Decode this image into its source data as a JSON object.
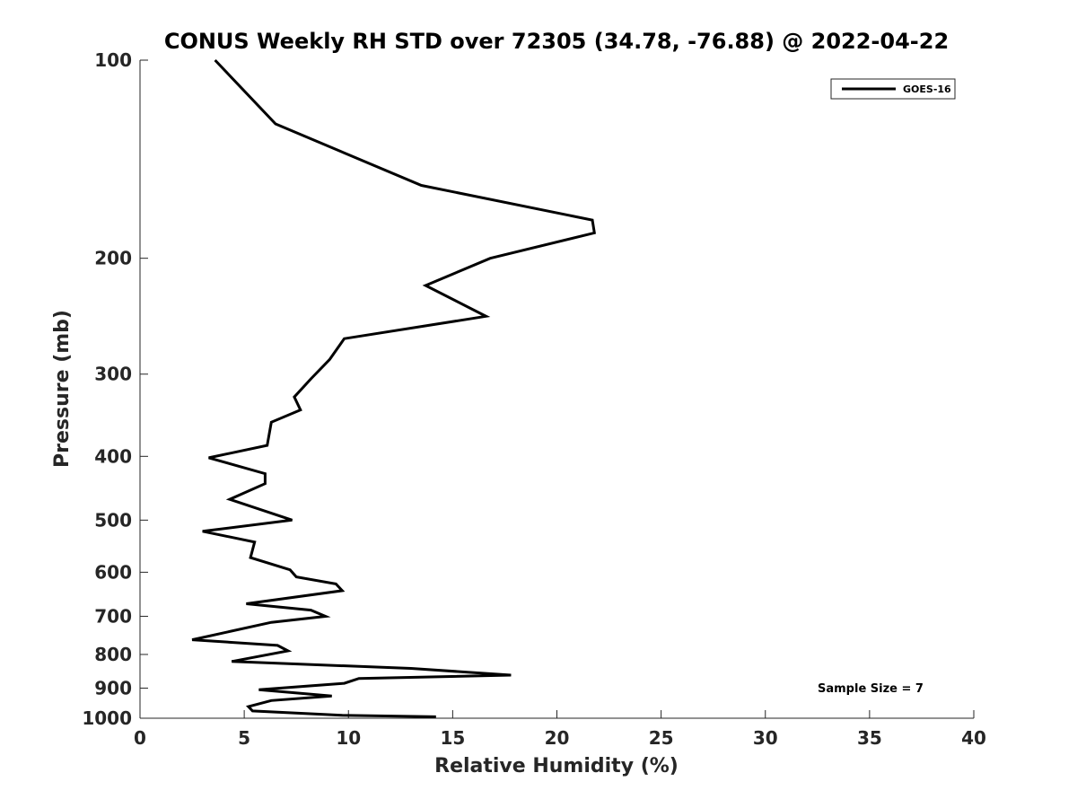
{
  "chart_data": {
    "type": "line",
    "title": "CONUS Weekly RH STD over 72305 (34.78, -76.88) @ 2022-04-22",
    "xlabel": "Relative Humidity (%)",
    "ylabel": "Pressure (mb)",
    "xlim": [
      0,
      40
    ],
    "ylim": [
      100,
      1000
    ],
    "yscale": "log",
    "y_reversed": true,
    "x_ticks": [
      "0",
      "5",
      "10",
      "15",
      "20",
      "25",
      "30",
      "35",
      "40"
    ],
    "y_ticks": [
      "100",
      "200",
      "300",
      "400",
      "500",
      "600",
      "700",
      "800",
      "900",
      "1000"
    ],
    "grid": false,
    "legend_position": "top-right",
    "annotation": "Sample Size = 7",
    "colors": {
      "line": "#000000",
      "axis": "#262626"
    },
    "series": [
      {
        "name": "GOES-16",
        "points": [
          [
            3.6,
            100
          ],
          [
            6.5,
            125
          ],
          [
            13.5,
            155
          ],
          [
            21.7,
            175
          ],
          [
            21.8,
            183
          ],
          [
            16.8,
            200
          ],
          [
            13.7,
            220
          ],
          [
            16.6,
            245
          ],
          [
            9.8,
            265
          ],
          [
            9.1,
            285
          ],
          [
            8.2,
            305
          ],
          [
            7.4,
            325
          ],
          [
            7.7,
            340
          ],
          [
            6.3,
            355
          ],
          [
            6.1,
            385
          ],
          [
            3.3,
            402
          ],
          [
            6.0,
            425
          ],
          [
            6.0,
            440
          ],
          [
            4.3,
            465
          ],
          [
            7.3,
            500
          ],
          [
            3.0,
            520
          ],
          [
            5.5,
            540
          ],
          [
            5.3,
            570
          ],
          [
            7.2,
            595
          ],
          [
            7.5,
            610
          ],
          [
            9.4,
            625
          ],
          [
            9.7,
            640
          ],
          [
            5.1,
            670
          ],
          [
            8.2,
            685
          ],
          [
            8.9,
            700
          ],
          [
            6.3,
            715
          ],
          [
            2.5,
            760
          ],
          [
            6.6,
            775
          ],
          [
            7.1,
            790
          ],
          [
            4.4,
            820
          ],
          [
            13.0,
            840
          ],
          [
            17.8,
            860
          ],
          [
            10.5,
            870
          ],
          [
            9.8,
            885
          ],
          [
            5.7,
            905
          ],
          [
            9.2,
            925
          ],
          [
            6.3,
            940
          ],
          [
            5.2,
            960
          ],
          [
            5.4,
            975
          ],
          [
            9.7,
            990
          ],
          [
            14.2,
            995
          ]
        ]
      }
    ]
  }
}
